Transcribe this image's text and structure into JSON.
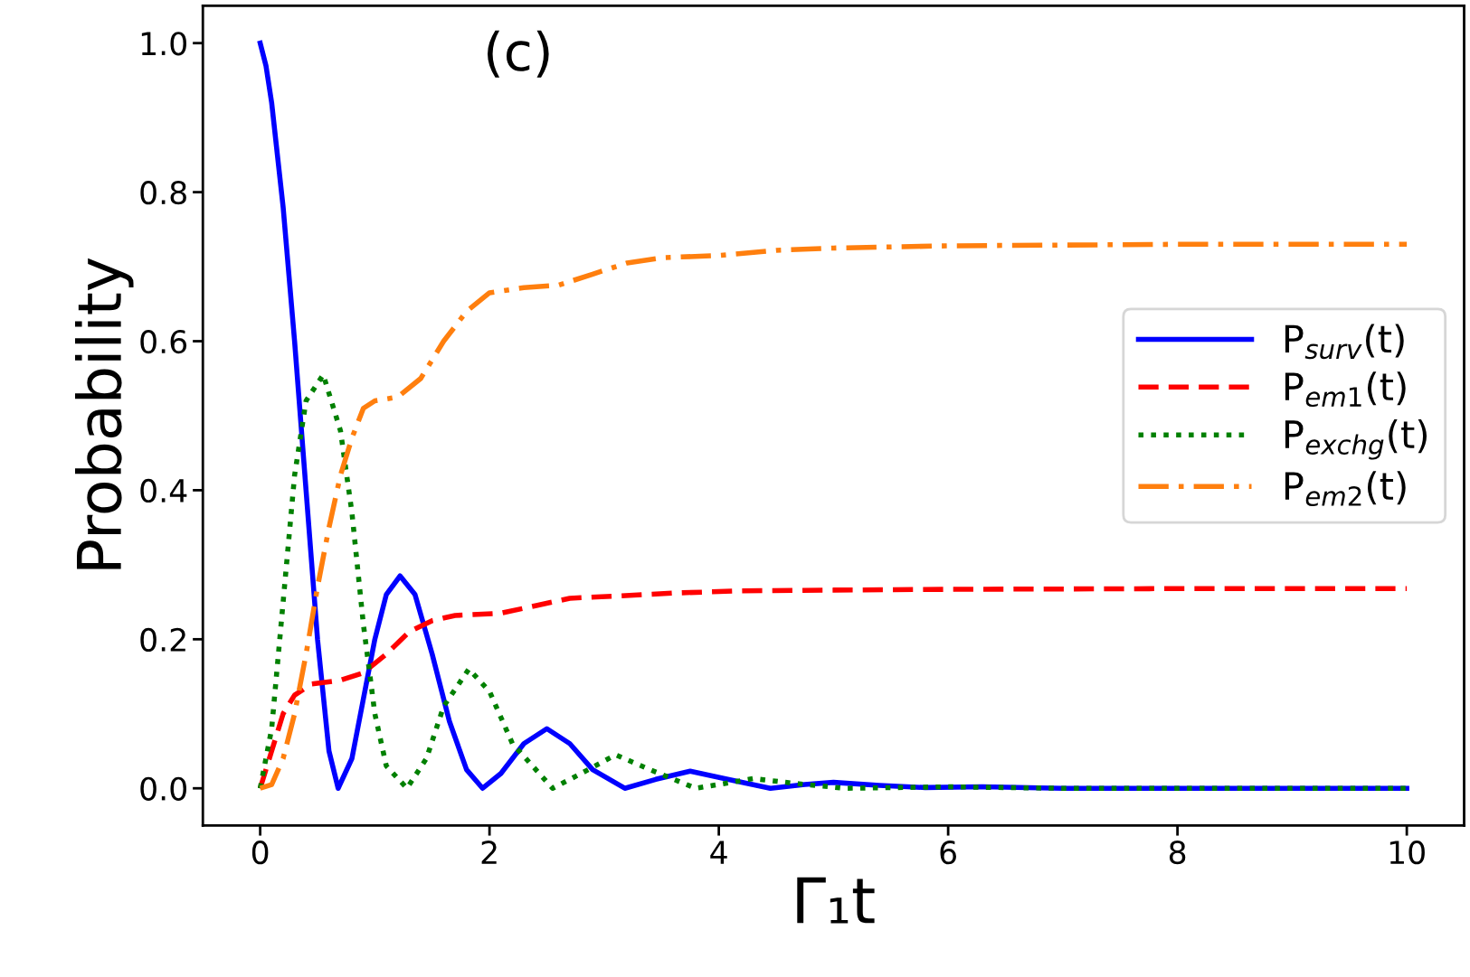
{
  "chart_data": {
    "type": "line",
    "xlabel": "Γ₁t",
    "ylabel": "Probability",
    "annotations": [
      "(c)"
    ],
    "xlim": [
      -0.5,
      10.5
    ],
    "xticks": [
      0,
      2,
      4,
      6,
      8,
      10
    ],
    "ylim": [
      -0.05,
      1.05
    ],
    "yticks": [
      {
        "value": 0,
        "label": "0.0"
      },
      {
        "value": 0.2,
        "label": "0.2"
      },
      {
        "value": 0.4,
        "label": "0.4"
      },
      {
        "value": 0.6,
        "label": "0.6"
      },
      {
        "value": 0.8,
        "label": "0.8"
      },
      {
        "value": 1.0,
        "label": "1.0"
      }
    ],
    "grid": false,
    "legend": "right",
    "series": [
      {
        "name": "P$_{surv}$(t)",
        "color": "#0000ff",
        "line_style": "solid",
        "x": [
          0,
          0.05,
          0.1,
          0.2,
          0.3,
          0.4,
          0.5,
          0.6,
          0.68,
          0.8,
          0.9,
          1.0,
          1.1,
          1.22,
          1.35,
          1.5,
          1.65,
          1.8,
          1.94,
          2.1,
          2.3,
          2.5,
          2.7,
          2.9,
          3.18,
          3.45,
          3.75,
          4.05,
          4.45,
          4.75,
          5.0,
          5.4,
          5.8,
          6.3,
          7,
          10
        ],
        "values": [
          1.0,
          0.97,
          0.92,
          0.78,
          0.6,
          0.4,
          0.2,
          0.05,
          0.0,
          0.04,
          0.12,
          0.2,
          0.26,
          0.285,
          0.26,
          0.18,
          0.09,
          0.025,
          0.0,
          0.02,
          0.06,
          0.08,
          0.06,
          0.025,
          0.0,
          0.012,
          0.023,
          0.013,
          0.0,
          0.005,
          0.008,
          0.004,
          0.001,
          0.002,
          0.0,
          0.0
        ]
      },
      {
        "name": "P$_{em1}$(t)",
        "color": "#ff0000",
        "line_style": "dashed",
        "x": [
          0,
          0.1,
          0.2,
          0.3,
          0.45,
          0.7,
          0.9,
          1.1,
          1.3,
          1.5,
          1.7,
          2.1,
          2.4,
          2.7,
          3.1,
          3.6,
          4.2,
          5,
          6,
          8,
          10
        ],
        "values": [
          0,
          0.05,
          0.1,
          0.125,
          0.14,
          0.145,
          0.155,
          0.18,
          0.21,
          0.225,
          0.232,
          0.235,
          0.245,
          0.255,
          0.258,
          0.262,
          0.265,
          0.266,
          0.267,
          0.268,
          0.268
        ]
      },
      {
        "name": "P$_{exchg}$(t)",
        "color": "#008000",
        "line_style": "dotted",
        "x": [
          0,
          0.1,
          0.2,
          0.3,
          0.4,
          0.55,
          0.7,
          0.8,
          0.9,
          1.0,
          1.1,
          1.28,
          1.45,
          1.6,
          1.82,
          2.0,
          2.2,
          2.55,
          2.8,
          3.1,
          3.4,
          3.8,
          4.3,
          4.7,
          5.1,
          6,
          7,
          10
        ],
        "values": [
          0,
          0.08,
          0.25,
          0.42,
          0.52,
          0.555,
          0.48,
          0.37,
          0.22,
          0.1,
          0.03,
          0.0,
          0.04,
          0.11,
          0.16,
          0.13,
          0.06,
          0.0,
          0.02,
          0.045,
          0.025,
          0.0,
          0.013,
          0.006,
          0.0,
          0.002,
          0.0,
          0.0
        ]
      },
      {
        "name": "P$_{em2}$(t)",
        "color": "#ff7f0e",
        "line_style": "dashdot",
        "x": [
          0,
          0.1,
          0.2,
          0.3,
          0.4,
          0.5,
          0.6,
          0.7,
          0.8,
          0.9,
          1.0,
          1.2,
          1.4,
          1.6,
          1.8,
          2.0,
          2.3,
          2.6,
          2.9,
          3.2,
          3.5,
          4,
          4.5,
          5,
          6,
          8,
          10
        ],
        "values": [
          0,
          0.005,
          0.04,
          0.1,
          0.18,
          0.27,
          0.35,
          0.42,
          0.47,
          0.51,
          0.52,
          0.525,
          0.55,
          0.6,
          0.64,
          0.665,
          0.672,
          0.675,
          0.69,
          0.705,
          0.712,
          0.715,
          0.722,
          0.725,
          0.728,
          0.73,
          0.73
        ]
      }
    ]
  }
}
